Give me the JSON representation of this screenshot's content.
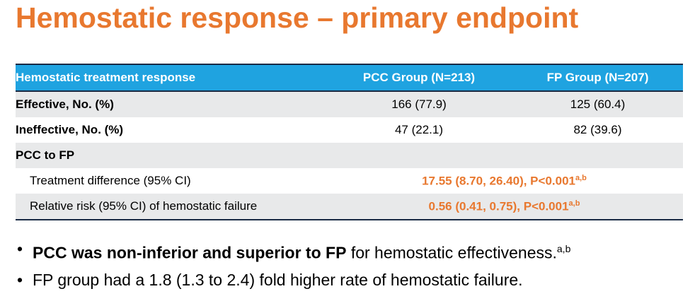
{
  "title": "Hemostatic response – primary endpoint",
  "table": {
    "headers": [
      "Hemostatic treatment response",
      "PCC Group (N=213)",
      "FP Group (N=207)"
    ],
    "rows": [
      {
        "label": "Effective, No. (%)",
        "pcc": "166 (77.9)",
        "fp": "125 (60.4)"
      },
      {
        "label": "Ineffective, No. (%)",
        "pcc": "47 (22.1)",
        "fp": "82 (39.6)"
      }
    ],
    "section_label": "PCC to FP",
    "comparisons": [
      {
        "label": "Treatment difference (95% CI)",
        "value": "17.55 (8.70, 26.40), P<0.001",
        "sup": "a,b"
      },
      {
        "label": "Relative risk (95% CI) of hemostatic failure",
        "value": "0.56 (0.41, 0.75), P<0.001",
        "sup": "a,b"
      }
    ]
  },
  "bullets": [
    {
      "bold": "PCC was non-inferior and superior to FP",
      "text": " for hemostatic effectiveness.",
      "sup": "a,b"
    },
    {
      "bold": "",
      "text": "FP group had a 1.8 (1.3 to 2.4) fold higher rate of hemostatic failure.",
      "sup": ""
    }
  ],
  "bullet_glyph": "•",
  "colors": {
    "accent": "#e8782f",
    "header_bg": "#1fa3e0",
    "row_shade": "#e8e9ea"
  }
}
